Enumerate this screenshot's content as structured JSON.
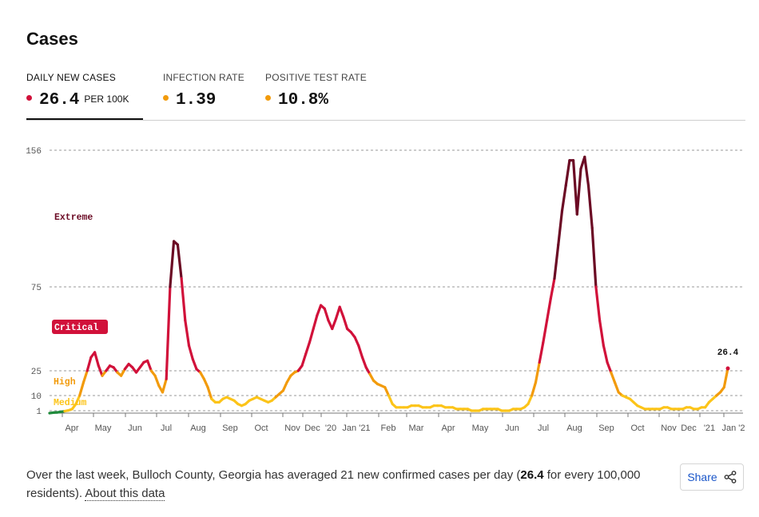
{
  "title": "Cases",
  "tabs": [
    {
      "label": "DAILY NEW CASES",
      "value": "26.4",
      "unit": "PER 100K",
      "dot_color": "#d1113a"
    },
    {
      "label": "INFECTION RATE",
      "value": "1.39",
      "unit": "",
      "dot_color": "#f29b0c"
    },
    {
      "label": "POSITIVE TEST RATE",
      "value": "10.8%",
      "unit": "",
      "dot_color": "#f29b0c"
    }
  ],
  "chart_data": {
    "type": "line",
    "title": "",
    "xlabel": "",
    "ylabel": "",
    "scale": "custom-piecewise",
    "y_ticks": [
      156,
      75,
      25,
      10,
      1
    ],
    "y_tick_labels": [
      "156",
      "75",
      "25",
      "10",
      "1"
    ],
    "x_tick_labels": [
      "Apr",
      "May",
      "Jun",
      "Jul",
      "Aug",
      "Sep",
      "Oct",
      "Nov",
      "Dec",
      "'20",
      "Jan '21",
      "Feb",
      "Mar",
      "Apr",
      "May",
      "Jun",
      "Jul",
      "Aug",
      "Sep",
      "Oct",
      "Nov",
      "Dec",
      "'21",
      "Jan '2"
    ],
    "zones": [
      {
        "name": "Extreme",
        "color": "#6b0a24",
        "min": 75
      },
      {
        "name": "Critical",
        "color": "#d1113a",
        "min": 25
      },
      {
        "name": "High",
        "color": "#f29b0c",
        "min": 10
      },
      {
        "name": "Medium",
        "color": "#fcc419",
        "min": 1
      }
    ],
    "end_label": "26.4",
    "series": [
      {
        "points": [
          [
            0,
            0
          ],
          [
            1,
            0.2
          ],
          [
            2,
            0.3
          ],
          [
            3,
            0.5
          ],
          [
            4,
            0.8
          ],
          [
            5,
            1.2
          ],
          [
            6,
            2
          ],
          [
            7,
            5
          ],
          [
            8,
            10
          ],
          [
            9,
            18
          ],
          [
            10,
            25
          ],
          [
            11,
            33
          ],
          [
            12,
            36
          ],
          [
            13,
            28
          ],
          [
            14,
            22
          ],
          [
            15,
            25
          ],
          [
            16,
            28
          ],
          [
            17,
            27
          ],
          [
            18,
            24
          ],
          [
            19,
            22
          ],
          [
            20,
            26
          ],
          [
            21,
            29
          ],
          [
            22,
            27
          ],
          [
            23,
            24
          ],
          [
            24,
            27
          ],
          [
            25,
            30
          ],
          [
            26,
            31
          ],
          [
            27,
            25
          ],
          [
            28,
            22
          ],
          [
            29,
            16
          ],
          [
            30,
            12
          ],
          [
            31,
            20
          ],
          [
            32,
            75
          ],
          [
            33,
            102
          ],
          [
            34,
            100
          ],
          [
            35,
            80
          ],
          [
            36,
            55
          ],
          [
            37,
            40
          ],
          [
            38,
            32
          ],
          [
            39,
            26
          ],
          [
            40,
            24
          ],
          [
            41,
            20
          ],
          [
            42,
            15
          ],
          [
            43,
            8
          ],
          [
            44,
            6
          ],
          [
            45,
            6
          ],
          [
            46,
            8
          ],
          [
            47,
            9
          ],
          [
            48,
            8
          ],
          [
            49,
            7
          ],
          [
            50,
            5
          ],
          [
            51,
            4
          ],
          [
            52,
            5
          ],
          [
            53,
            7
          ],
          [
            54,
            8
          ],
          [
            55,
            9
          ],
          [
            56,
            8
          ],
          [
            57,
            7
          ],
          [
            58,
            6
          ],
          [
            59,
            7
          ],
          [
            60,
            9
          ],
          [
            61,
            11
          ],
          [
            62,
            13
          ],
          [
            63,
            18
          ],
          [
            64,
            22
          ],
          [
            65,
            24
          ],
          [
            66,
            25
          ],
          [
            67,
            28
          ],
          [
            68,
            35
          ],
          [
            69,
            42
          ],
          [
            70,
            50
          ],
          [
            71,
            58
          ],
          [
            72,
            64
          ],
          [
            73,
            62
          ],
          [
            74,
            55
          ],
          [
            75,
            50
          ],
          [
            76,
            56
          ],
          [
            77,
            63
          ],
          [
            78,
            57
          ],
          [
            79,
            50
          ],
          [
            80,
            48
          ],
          [
            81,
            45
          ],
          [
            82,
            40
          ],
          [
            83,
            33
          ],
          [
            84,
            27
          ],
          [
            85,
            23
          ],
          [
            86,
            19
          ],
          [
            87,
            17
          ],
          [
            88,
            16
          ],
          [
            89,
            15
          ],
          [
            90,
            10
          ],
          [
            91,
            5
          ],
          [
            92,
            3
          ],
          [
            93,
            3
          ],
          [
            94,
            3
          ],
          [
            95,
            3
          ],
          [
            96,
            4
          ],
          [
            97,
            4
          ],
          [
            98,
            4
          ],
          [
            99,
            3
          ],
          [
            100,
            3
          ],
          [
            101,
            3
          ],
          [
            102,
            4
          ],
          [
            103,
            4
          ],
          [
            104,
            4
          ],
          [
            105,
            3
          ],
          [
            106,
            3
          ],
          [
            107,
            3
          ],
          [
            108,
            2
          ],
          [
            109,
            2
          ],
          [
            110,
            2
          ],
          [
            111,
            2
          ],
          [
            112,
            1
          ],
          [
            113,
            1
          ],
          [
            114,
            1
          ],
          [
            115,
            2
          ],
          [
            116,
            2
          ],
          [
            117,
            2
          ],
          [
            118,
            2
          ],
          [
            119,
            2
          ],
          [
            120,
            1
          ],
          [
            121,
            1
          ],
          [
            122,
            1
          ],
          [
            123,
            2
          ],
          [
            124,
            2
          ],
          [
            125,
            2
          ],
          [
            126,
            3
          ],
          [
            127,
            5
          ],
          [
            128,
            10
          ],
          [
            129,
            18
          ],
          [
            130,
            30
          ],
          [
            131,
            42
          ],
          [
            132,
            55
          ],
          [
            133,
            68
          ],
          [
            134,
            80
          ],
          [
            135,
            100
          ],
          [
            136,
            120
          ],
          [
            137,
            135
          ],
          [
            138,
            150
          ],
          [
            139,
            150
          ],
          [
            140,
            118
          ],
          [
            141,
            145
          ],
          [
            142,
            152
          ],
          [
            143,
            135
          ],
          [
            144,
            110
          ],
          [
            145,
            75
          ],
          [
            146,
            55
          ],
          [
            147,
            40
          ],
          [
            148,
            30
          ],
          [
            149,
            24
          ],
          [
            150,
            18
          ],
          [
            151,
            12
          ],
          [
            152,
            10
          ],
          [
            153,
            9
          ],
          [
            154,
            8
          ],
          [
            155,
            6
          ],
          [
            156,
            4
          ],
          [
            157,
            3
          ],
          [
            158,
            2
          ],
          [
            159,
            2
          ],
          [
            160,
            2
          ],
          [
            161,
            2
          ],
          [
            162,
            2
          ],
          [
            163,
            3
          ],
          [
            164,
            3
          ],
          [
            165,
            2
          ],
          [
            166,
            2
          ],
          [
            167,
            2
          ],
          [
            168,
            2
          ],
          [
            169,
            3
          ],
          [
            170,
            3
          ],
          [
            171,
            2
          ],
          [
            172,
            2
          ],
          [
            173,
            3
          ],
          [
            174,
            3
          ],
          [
            175,
            6
          ],
          [
            176,
            8
          ],
          [
            177,
            10
          ],
          [
            178,
            12
          ],
          [
            179,
            15
          ],
          [
            180,
            26.4
          ]
        ]
      }
    ]
  },
  "summary": {
    "before": "Over the last week, Bulloch County, Georgia has averaged 21 new confirmed cases per day (",
    "bold": "26.4",
    "after": " for every 100,000 residents). ",
    "link": "About this data"
  },
  "share": {
    "label": "Share",
    "icon": "share-icon"
  }
}
